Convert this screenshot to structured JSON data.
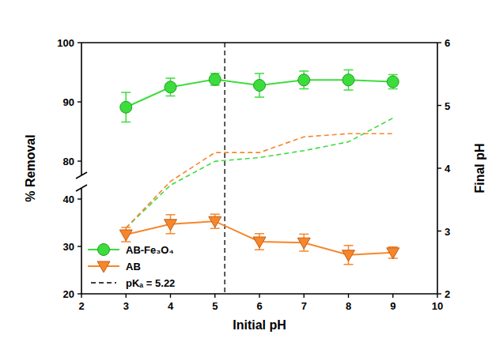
{
  "chart_data": {
    "type": "line",
    "xlabel": "Initial pH",
    "ylabel": "% Removal",
    "y2label": "Final pH",
    "xlim": [
      2,
      10
    ],
    "xticks": [
      2,
      3,
      4,
      5,
      6,
      7,
      8,
      9,
      10
    ],
    "ylim": [
      20,
      100
    ],
    "yticks": [
      20,
      30,
      40,
      80,
      90,
      100
    ],
    "ybreak": [
      40,
      80
    ],
    "y2lim": [
      2,
      6
    ],
    "y2ticks": [
      2,
      3,
      4,
      5,
      6
    ],
    "legend": "lower left",
    "series": [
      {
        "name": "AB-Fe₃O₄",
        "color": "#3ddc3d",
        "marker": "circle",
        "line_style": "solid",
        "x": [
          3,
          4,
          5,
          6,
          7,
          8,
          9
        ],
        "values": [
          89.1,
          92.5,
          93.8,
          92.8,
          93.7,
          93.7,
          93.4
        ],
        "errors": [
          2.5,
          1.5,
          1.0,
          2.0,
          1.5,
          1.7,
          1.2
        ]
      },
      {
        "name": "AB",
        "color": "#f7862a",
        "marker": "triangle_down",
        "line_style": "solid",
        "x": [
          3,
          4,
          5,
          6,
          7,
          8,
          9
        ],
        "values": [
          32.5,
          34.7,
          35.3,
          31.0,
          30.8,
          28.2,
          28.7
        ],
        "errors": [
          1.5,
          2.0,
          1.5,
          1.7,
          1.8,
          2.0,
          1.2
        ]
      },
      {
        "color": "#3ddc3d",
        "marker": "none",
        "line_style": "dashed",
        "axis": "y2",
        "x": [
          3,
          4,
          5,
          6,
          7,
          8,
          9
        ],
        "values": [
          3.05,
          3.73,
          4.11,
          4.17,
          4.28,
          4.42,
          4.8
        ]
      },
      {
        "color": "#f7862a",
        "marker": "none",
        "line_style": "dashed",
        "axis": "y2",
        "x": [
          3,
          4,
          5,
          6,
          7,
          8,
          9
        ],
        "values": [
          3.05,
          3.79,
          4.25,
          4.25,
          4.5,
          4.55,
          4.55
        ]
      }
    ],
    "annotations": [
      {
        "type": "vline",
        "x": 5.22,
        "label": "pKₐ = 5.22",
        "color": "#000000",
        "line_style": "dashed"
      }
    ]
  }
}
